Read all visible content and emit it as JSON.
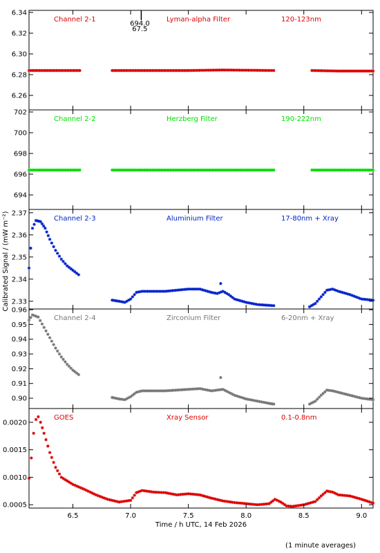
{
  "ylabel": "Calibrated Signal / (mW m⁻²)",
  "xlabel": "Time / h UTC, 14 Feb 2026",
  "footnote": "(1 minute averages)",
  "chart_data": {
    "type": "scatter",
    "xlim": [
      6.12,
      9.1
    ],
    "xticks": [
      6.5,
      7.0,
      7.5,
      8.0,
      8.5,
      9.0
    ],
    "xticklabels": [
      "6.5",
      "7.0",
      "7.5",
      "8.0",
      "8.5",
      "9.0"
    ],
    "panels": [
      {
        "key": "ch1",
        "channel": "Channel 2-1",
        "filter": "Lyman-alpha Filter",
        "band": "120-123nm",
        "color": "#dd0000",
        "ylim": [
          6.246,
          6.342
        ],
        "yticks": [
          6.26,
          6.28,
          6.3,
          6.32,
          6.34
        ],
        "yticklabels": [
          "6.26",
          "6.28",
          "6.30",
          "6.32",
          "6.34"
        ],
        "annotation": {
          "x": 7.08,
          "lines": [
            "694.0",
            "67.5"
          ]
        },
        "series": [
          {
            "points": [
              [
                6.12,
                6.284
              ],
              [
                6.56,
                6.284
              ]
            ]
          },
          {
            "points": [
              [
                6.84,
                6.284
              ],
              [
                7.5,
                6.284
              ],
              [
                7.8,
                6.2845
              ],
              [
                8.24,
                6.284
              ]
            ]
          },
          {
            "points": [
              [
                8.57,
                6.284
              ],
              [
                8.8,
                6.2835
              ],
              [
                9.1,
                6.2835
              ]
            ]
          }
        ]
      },
      {
        "key": "ch2",
        "channel": "Channel 2-2",
        "filter": "Herzberg Filter",
        "band": "190-222nm",
        "color": "#00dd00",
        "ylim": [
          692.6,
          702.2
        ],
        "yticks": [
          694,
          696,
          698,
          700,
          702
        ],
        "yticklabels": [
          "694",
          "696",
          "698",
          "700",
          "702"
        ],
        "series": [
          {
            "points": [
              [
                6.12,
                696.4
              ],
              [
                6.56,
                696.4
              ]
            ]
          },
          {
            "points": [
              [
                6.84,
                696.4
              ],
              [
                7.5,
                696.4
              ],
              [
                8.24,
                696.4
              ]
            ]
          },
          {
            "points": [
              [
                8.57,
                696.4
              ],
              [
                9.1,
                696.4
              ]
            ]
          }
        ]
      },
      {
        "key": "ch3",
        "channel": "Channel 2-3",
        "filter": "Aluminium Filter",
        "band": "17-80nm + Xray",
        "color": "#0022cc",
        "ylim": [
          2.3265,
          2.3715
        ],
        "yticks": [
          2.33,
          2.34,
          2.35,
          2.36,
          2.37
        ],
        "yticklabels": [
          "2.33",
          "2.34",
          "2.35",
          "2.36",
          "2.37"
        ],
        "series": [
          {
            "points": [
              [
                6.12,
                2.345
              ],
              [
                6.15,
                2.363
              ],
              [
                6.18,
                2.3665
              ],
              [
                6.22,
                2.366
              ],
              [
                6.26,
                2.363
              ],
              [
                6.3,
                2.358
              ],
              [
                6.35,
                2.353
              ],
              [
                6.4,
                2.349
              ],
              [
                6.45,
                2.346
              ],
              [
                6.5,
                2.344
              ],
              [
                6.55,
                2.342
              ]
            ]
          },
          {
            "points": [
              [
                6.84,
                2.3305
              ],
              [
                6.9,
                2.33
              ],
              [
                6.95,
                2.3295
              ],
              [
                7.0,
                2.331
              ],
              [
                7.05,
                2.334
              ],
              [
                7.1,
                2.3345
              ],
              [
                7.3,
                2.3345
              ],
              [
                7.5,
                2.3355
              ],
              [
                7.6,
                2.3355
              ],
              [
                7.7,
                2.334
              ],
              [
                7.75,
                2.3335
              ],
              [
                7.8,
                2.3345
              ],
              [
                7.85,
                2.333
              ],
              [
                7.9,
                2.331
              ],
              [
                8.0,
                2.3295
              ],
              [
                8.1,
                2.3285
              ],
              [
                8.24,
                2.328
              ]
            ]
          },
          {
            "points": [
              [
                8.55,
                2.3275
              ],
              [
                8.6,
                2.329
              ],
              [
                8.65,
                2.332
              ],
              [
                8.7,
                2.335
              ],
              [
                8.75,
                2.3355
              ],
              [
                8.8,
                2.3345
              ],
              [
                8.9,
                2.333
              ],
              [
                9.0,
                2.331
              ],
              [
                9.1,
                2.3305
              ]
            ]
          },
          {
            "points": [
              [
                7.78,
                2.338
              ]
            ]
          }
        ]
      },
      {
        "key": "ch4",
        "channel": "Channel 2-4",
        "filter": "Zirconium Filter",
        "band": "6-20nm + Xray",
        "color": "#777777",
        "ylim": [
          0.893,
          0.9605
        ],
        "yticks": [
          0.9,
          0.91,
          0.92,
          0.93,
          0.94,
          0.95,
          0.96
        ],
        "yticklabels": [
          "0.90",
          "0.91",
          "0.92",
          "0.93",
          "0.94",
          "0.95",
          "0.96"
        ],
        "series": [
          {
            "points": [
              [
                6.12,
                0.953
              ],
              [
                6.15,
                0.9565
              ],
              [
                6.2,
                0.955
              ],
              [
                6.25,
                0.948
              ],
              [
                6.3,
                0.941
              ],
              [
                6.35,
                0.934
              ],
              [
                6.4,
                0.928
              ],
              [
                6.45,
                0.923
              ],
              [
                6.5,
                0.919
              ],
              [
                6.55,
                0.916
              ]
            ]
          },
          {
            "points": [
              [
                6.84,
                0.9005
              ],
              [
                6.9,
                0.8995
              ],
              [
                6.95,
                0.899
              ],
              [
                7.0,
                0.901
              ],
              [
                7.05,
                0.904
              ],
              [
                7.1,
                0.905
              ],
              [
                7.3,
                0.905
              ],
              [
                7.5,
                0.906
              ],
              [
                7.6,
                0.9065
              ],
              [
                7.7,
                0.905
              ],
              [
                7.75,
                0.9055
              ],
              [
                7.8,
                0.906
              ],
              [
                7.85,
                0.904
              ],
              [
                7.9,
                0.902
              ],
              [
                8.0,
                0.8995
              ],
              [
                8.1,
                0.898
              ],
              [
                8.2,
                0.8965
              ],
              [
                8.24,
                0.896
              ]
            ]
          },
          {
            "points": [
              [
                8.55,
                0.896
              ],
              [
                8.6,
                0.898
              ],
              [
                8.65,
                0.902
              ],
              [
                8.7,
                0.9055
              ],
              [
                8.75,
                0.905
              ],
              [
                8.8,
                0.904
              ],
              [
                8.9,
                0.902
              ],
              [
                9.0,
                0.9
              ],
              [
                9.1,
                0.899
              ]
            ]
          },
          {
            "points": [
              [
                7.78,
                0.914
              ]
            ]
          }
        ]
      },
      {
        "key": "goes",
        "channel": "GOES",
        "filter": "Xray Sensor",
        "band": "0.1-0.8nm",
        "color": "#dd0000",
        "ylim": [
          0.00044,
          0.00225
        ],
        "yticks": [
          0.0005,
          0.001,
          0.0015,
          0.002
        ],
        "yticklabels": [
          "0.0005",
          "0.0010",
          "0.0015",
          "0.0020"
        ],
        "series": [
          {
            "points": [
              [
                6.12,
                0.00098
              ],
              [
                6.14,
                0.00135
              ],
              [
                6.16,
                0.0018
              ],
              [
                6.18,
                0.00205
              ],
              [
                6.2,
                0.0021
              ],
              [
                6.22,
                0.002
              ],
              [
                6.25,
                0.0018
              ],
              [
                6.3,
                0.00145
              ],
              [
                6.35,
                0.00118
              ],
              [
                6.4,
                0.001
              ],
              [
                6.5,
                0.00087
              ],
              [
                6.6,
                0.00078
              ],
              [
                6.7,
                0.00068
              ],
              [
                6.8,
                0.0006
              ],
              [
                6.9,
                0.00055
              ],
              [
                7.0,
                0.00058
              ],
              [
                7.05,
                0.00072
              ],
              [
                7.1,
                0.00076
              ],
              [
                7.2,
                0.00073
              ],
              [
                7.3,
                0.00072
              ],
              [
                7.4,
                0.00068
              ],
              [
                7.5,
                0.0007
              ],
              [
                7.6,
                0.00068
              ],
              [
                7.7,
                0.00062
              ],
              [
                7.8,
                0.00057
              ],
              [
                7.9,
                0.00054
              ],
              [
                8.0,
                0.00052
              ],
              [
                8.1,
                0.0005
              ],
              [
                8.2,
                0.00052
              ],
              [
                8.25,
                0.0006
              ],
              [
                8.3,
                0.00055
              ],
              [
                8.35,
                0.00048
              ],
              [
                8.4,
                0.00047
              ],
              [
                8.5,
                0.0005
              ],
              [
                8.6,
                0.00056
              ],
              [
                8.65,
                0.00066
              ],
              [
                8.7,
                0.00075
              ],
              [
                8.75,
                0.00073
              ],
              [
                8.8,
                0.00068
              ],
              [
                8.9,
                0.00066
              ],
              [
                9.0,
                0.0006
              ],
              [
                9.1,
                0.00053
              ]
            ]
          }
        ]
      }
    ]
  }
}
